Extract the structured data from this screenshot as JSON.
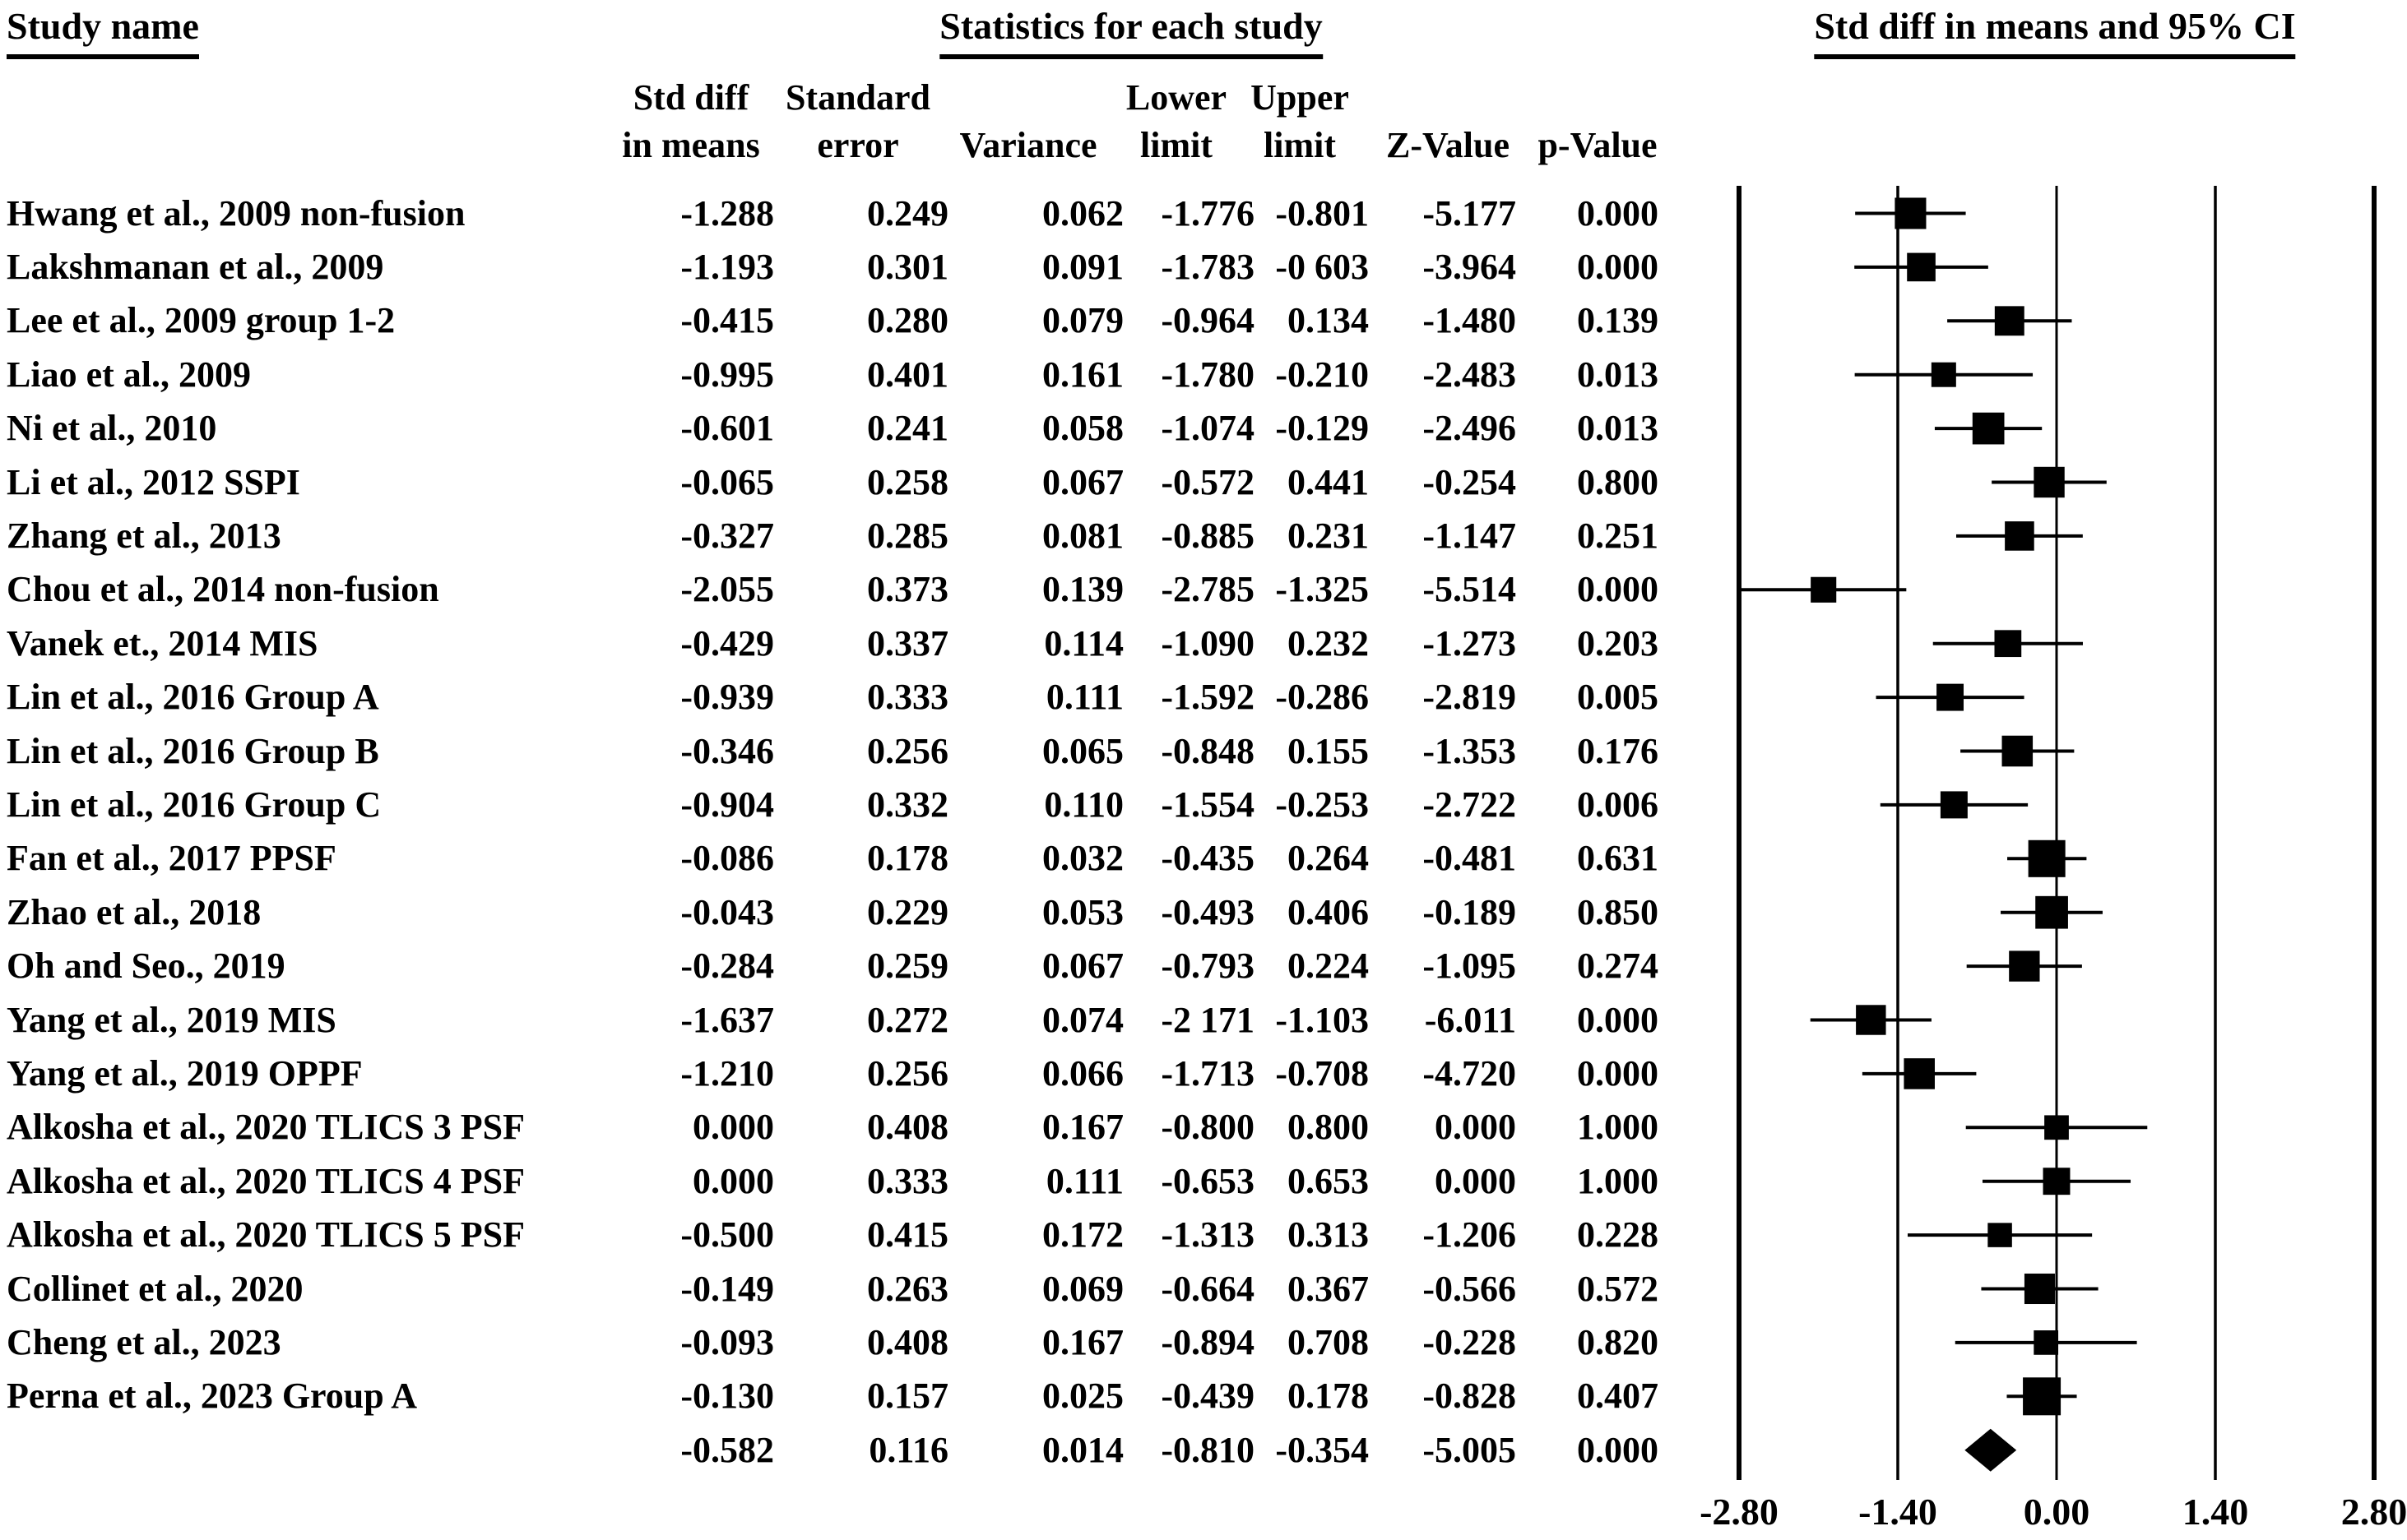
{
  "headers": {
    "study_name": "Study name",
    "stats_group": "Statistics for each study",
    "plot_group": "Std diff in means and 95% CI"
  },
  "columns": [
    {
      "line1": "Std diff",
      "line2": "in means"
    },
    {
      "line1": "Standard",
      "line2": "error"
    },
    {
      "line1": "",
      "line2": "Variance"
    },
    {
      "line1": "Lower",
      "line2": "limit"
    },
    {
      "line1": "Upper",
      "line2": "limit"
    },
    {
      "line1": "",
      "line2": "Z-Value"
    },
    {
      "line1": "",
      "line2": "p-Value"
    }
  ],
  "rows": [
    {
      "study": "Hwang et al., 2009 non-fusion",
      "std_diff": "-1.288",
      "std_err": "0.249",
      "variance": "0.062",
      "lower": "-1.776",
      "upper": "-0.801",
      "z": "-5.177",
      "p": "0.000"
    },
    {
      "study": "Lakshmanan et al., 2009",
      "std_diff": "-1.193",
      "std_err": "0.301",
      "variance": "0.091",
      "lower": "-1.783",
      "upper": "-0 603",
      "z": "-3.964",
      "p": "0.000"
    },
    {
      "study": "Lee et al., 2009 group 1-2",
      "std_diff": "-0.415",
      "std_err": "0.280",
      "variance": "0.079",
      "lower": "-0.964",
      "upper": "0.134",
      "z": "-1.480",
      "p": "0.139"
    },
    {
      "study": "Liao et al., 2009",
      "std_diff": "-0.995",
      "std_err": "0.401",
      "variance": "0.161",
      "lower": "-1.780",
      "upper": "-0.210",
      "z": "-2.483",
      "p": "0.013"
    },
    {
      "study": "Ni et al., 2010",
      "std_diff": "-0.601",
      "std_err": "0.241",
      "variance": "0.058",
      "lower": "-1.074",
      "upper": "-0.129",
      "z": "-2.496",
      "p": "0.013"
    },
    {
      "study": "Li et al., 2012 SSPI",
      "std_diff": "-0.065",
      "std_err": "0.258",
      "variance": "0.067",
      "lower": "-0.572",
      "upper": "0.441",
      "z": "-0.254",
      "p": "0.800"
    },
    {
      "study": "Zhang et al., 2013",
      "std_diff": "-0.327",
      "std_err": "0.285",
      "variance": "0.081",
      "lower": "-0.885",
      "upper": "0.231",
      "z": "-1.147",
      "p": "0.251"
    },
    {
      "study": "Chou et al., 2014 non-fusion",
      "std_diff": "-2.055",
      "std_err": "0.373",
      "variance": "0.139",
      "lower": "-2.785",
      "upper": "-1.325",
      "z": "-5.514",
      "p": "0.000"
    },
    {
      "study": "Vanek et., 2014 MIS",
      "std_diff": "-0.429",
      "std_err": "0.337",
      "variance": "0.114",
      "lower": "-1.090",
      "upper": "0.232",
      "z": "-1.273",
      "p": "0.203"
    },
    {
      "study": "Lin et al., 2016 Group A",
      "std_diff": "-0.939",
      "std_err": "0.333",
      "variance": "0.111",
      "lower": "-1.592",
      "upper": "-0.286",
      "z": "-2.819",
      "p": "0.005"
    },
    {
      "study": "Lin et al., 2016 Group B",
      "std_diff": "-0.346",
      "std_err": "0.256",
      "variance": "0.065",
      "lower": "-0.848",
      "upper": "0.155",
      "z": "-1.353",
      "p": "0.176"
    },
    {
      "study": "Lin et al., 2016 Group C",
      "std_diff": "-0.904",
      "std_err": "0.332",
      "variance": "0.110",
      "lower": "-1.554",
      "upper": "-0.253",
      "z": "-2.722",
      "p": "0.006"
    },
    {
      "study": "Fan et al., 2017 PPSF",
      "std_diff": "-0.086",
      "std_err": "0.178",
      "variance": "0.032",
      "lower": "-0.435",
      "upper": "0.264",
      "z": "-0.481",
      "p": "0.631"
    },
    {
      "study": "Zhao et al., 2018",
      "std_diff": "-0.043",
      "std_err": "0.229",
      "variance": "0.053",
      "lower": "-0.493",
      "upper": "0.406",
      "z": "-0.189",
      "p": "0.850"
    },
    {
      "study": "Oh and Seo., 2019",
      "std_diff": "-0.284",
      "std_err": "0.259",
      "variance": "0.067",
      "lower": "-0.793",
      "upper": "0.224",
      "z": "-1.095",
      "p": "0.274"
    },
    {
      "study": "Yang et al., 2019 MIS",
      "std_diff": "-1.637",
      "std_err": "0.272",
      "variance": "0.074",
      "lower": "-2 171",
      "upper": "-1.103",
      "z": "-6.011",
      "p": "0.000"
    },
    {
      "study": "Yang et al., 2019 OPPF",
      "std_diff": "-1.210",
      "std_err": "0.256",
      "variance": "0.066",
      "lower": "-1.713",
      "upper": "-0.708",
      "z": "-4.720",
      "p": "0.000"
    },
    {
      "study": "Alkosha et al., 2020 TLICS 3 PSF",
      "std_diff": "0.000",
      "std_err": "0.408",
      "variance": "0.167",
      "lower": "-0.800",
      "upper": "0.800",
      "z": "0.000",
      "p": "1.000"
    },
    {
      "study": "Alkosha et al., 2020 TLICS 4 PSF",
      "std_diff": "0.000",
      "std_err": "0.333",
      "variance": "0.111",
      "lower": "-0.653",
      "upper": "0.653",
      "z": "0.000",
      "p": "1.000"
    },
    {
      "study": "Alkosha et al., 2020 TLICS 5 PSF",
      "std_diff": "-0.500",
      "std_err": "0.415",
      "variance": "0.172",
      "lower": "-1.313",
      "upper": "0.313",
      "z": "-1.206",
      "p": "0.228"
    },
    {
      "study": "Collinet et al., 2020",
      "std_diff": "-0.149",
      "std_err": "0.263",
      "variance": "0.069",
      "lower": "-0.664",
      "upper": "0.367",
      "z": "-0.566",
      "p": "0.572"
    },
    {
      "study": "Cheng et al., 2023",
      "std_diff": "-0.093",
      "std_err": "0.408",
      "variance": "0.167",
      "lower": "-0.894",
      "upper": "0.708",
      "z": "-0.228",
      "p": "0.820"
    },
    {
      "study": "Perna et al., 2023 Group A",
      "std_diff": "-0.130",
      "std_err": "0.157",
      "variance": "0.025",
      "lower": "-0.439",
      "upper": "0.178",
      "z": "-0.828",
      "p": "0.407"
    },
    {
      "study": "",
      "std_diff": "-0.582",
      "std_err": "0.116",
      "variance": "0.014",
      "lower": "-0.810",
      "upper": "-0.354",
      "z": "-5.005",
      "p": "0.000"
    }
  ],
  "chart_data": {
    "type": "forest",
    "title": "Std diff in means and 95% CI",
    "xlim": [
      -2.8,
      2.8
    ],
    "tick_values": [
      -2.8,
      -1.4,
      0,
      1.4,
      2.8
    ],
    "tick_labels": [
      "-2.80",
      "-1.40",
      "0.00",
      "1.40",
      "2.80"
    ],
    "grid": "vertical-reference-lines",
    "studies": [
      {
        "label": "Hwang et al., 2009 non-fusion",
        "mean": -1.288,
        "lower": -1.776,
        "upper": -0.801,
        "se": 0.249
      },
      {
        "label": "Lakshmanan et al., 2009",
        "mean": -1.193,
        "lower": -1.783,
        "upper": -0.603,
        "se": 0.301
      },
      {
        "label": "Lee et al., 2009 group 1-2",
        "mean": -0.415,
        "lower": -0.964,
        "upper": 0.134,
        "se": 0.28
      },
      {
        "label": "Liao et al., 2009",
        "mean": -0.995,
        "lower": -1.78,
        "upper": -0.21,
        "se": 0.401
      },
      {
        "label": "Ni et al., 2010",
        "mean": -0.601,
        "lower": -1.074,
        "upper": -0.129,
        "se": 0.241
      },
      {
        "label": "Li et al., 2012 SSPI",
        "mean": -0.065,
        "lower": -0.572,
        "upper": 0.441,
        "se": 0.258
      },
      {
        "label": "Zhang et al., 2013",
        "mean": -0.327,
        "lower": -0.885,
        "upper": 0.231,
        "se": 0.285
      },
      {
        "label": "Chou et al., 2014 non-fusion",
        "mean": -2.055,
        "lower": -2.785,
        "upper": -1.325,
        "se": 0.373
      },
      {
        "label": "Vanek et., 2014 MIS",
        "mean": -0.429,
        "lower": -1.09,
        "upper": 0.232,
        "se": 0.337
      },
      {
        "label": "Lin et al., 2016 Group A",
        "mean": -0.939,
        "lower": -1.592,
        "upper": -0.286,
        "se": 0.333
      },
      {
        "label": "Lin et al., 2016 Group B",
        "mean": -0.346,
        "lower": -0.848,
        "upper": 0.155,
        "se": 0.256
      },
      {
        "label": "Lin et al., 2016 Group C",
        "mean": -0.904,
        "lower": -1.554,
        "upper": -0.253,
        "se": 0.332
      },
      {
        "label": "Fan et al., 2017 PPSF",
        "mean": -0.086,
        "lower": -0.435,
        "upper": 0.264,
        "se": 0.178
      },
      {
        "label": "Zhao et al., 2018",
        "mean": -0.043,
        "lower": -0.493,
        "upper": 0.406,
        "se": 0.229
      },
      {
        "label": "Oh and Seo., 2019",
        "mean": -0.284,
        "lower": -0.793,
        "upper": 0.224,
        "se": 0.259
      },
      {
        "label": "Yang et al., 2019 MIS",
        "mean": -1.637,
        "lower": -2.171,
        "upper": -1.103,
        "se": 0.272
      },
      {
        "label": "Yang et al., 2019 OPPF",
        "mean": -1.21,
        "lower": -1.713,
        "upper": -0.708,
        "se": 0.256
      },
      {
        "label": "Alkosha et al., 2020 TLICS 3 PSF",
        "mean": 0.0,
        "lower": -0.8,
        "upper": 0.8,
        "se": 0.408
      },
      {
        "label": "Alkosha et al., 2020 TLICS 4 PSF",
        "mean": 0.0,
        "lower": -0.653,
        "upper": 0.653,
        "se": 0.333
      },
      {
        "label": "Alkosha et al., 2020 TLICS 5 PSF",
        "mean": -0.5,
        "lower": -1.313,
        "upper": 0.313,
        "se": 0.415
      },
      {
        "label": "Collinet et al., 2020",
        "mean": -0.149,
        "lower": -0.664,
        "upper": 0.367,
        "se": 0.263
      },
      {
        "label": "Cheng et al., 2023",
        "mean": -0.093,
        "lower": -0.894,
        "upper": 0.708,
        "se": 0.408
      },
      {
        "label": "Perna et al., 2023 Group A",
        "mean": -0.13,
        "lower": -0.439,
        "upper": 0.178,
        "se": 0.157
      }
    ],
    "summary": {
      "mean": -0.582,
      "lower": -0.81,
      "upper": -0.354,
      "se": 0.116
    }
  }
}
